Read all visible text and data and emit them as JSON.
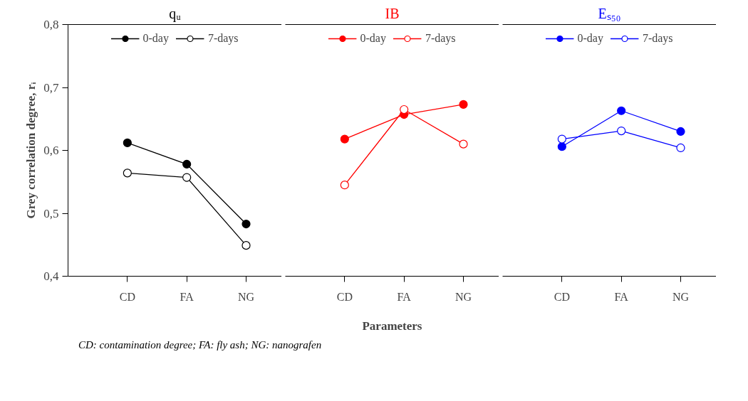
{
  "chart_data": [
    {
      "type": "line",
      "title": "qᵤ",
      "ylabel": "Grey correlation degree, rᵢ",
      "categories": [
        "CD",
        "FA",
        "NG"
      ],
      "marker": "circle",
      "legend": "top",
      "ylim": [
        0.4,
        0.8
      ],
      "yticks": [
        {
          "value": 0.4,
          "label": "0,4"
        },
        {
          "value": 0.5,
          "label": "0,5"
        },
        {
          "value": 0.6,
          "label": "0,6"
        },
        {
          "value": 0.7,
          "label": "0,7"
        },
        {
          "value": 0.8,
          "label": "0,8"
        }
      ],
      "annotations": [
        "CD: contamination degree; FA: fly ash; NG: nanografen"
      ],
      "series": [
        {
          "name": "0-day",
          "color": "#000000",
          "values": [
            0.612,
            0.578,
            0.483
          ]
        },
        {
          "name": "7-days",
          "color": "#000000",
          "values": [
            0.564,
            0.557,
            0.449
          ]
        }
      ]
    },
    {
      "type": "line",
      "title": "IB",
      "xlabel": "Parameters",
      "categories": [
        "CD",
        "FA",
        "NG"
      ],
      "marker": "circle",
      "legend": "top",
      "ylim": [
        0.4,
        0.8
      ],
      "tick_labels": "x",
      "series": [
        {
          "name": "0-day",
          "color": "#ff0000",
          "values": [
            0.618,
            0.657,
            0.673
          ]
        },
        {
          "name": "7-days",
          "color": "#ff0000",
          "values": [
            0.545,
            0.665,
            0.61
          ]
        }
      ]
    },
    {
      "type": "line",
      "title": "Eₛ₅₀",
      "categories": [
        "CD",
        "FA",
        "NG"
      ],
      "marker": "circle",
      "legend": "top",
      "ylim": [
        0.4,
        0.8
      ],
      "tick_labels": "x",
      "series": [
        {
          "name": "0-day",
          "color": "#0000ff",
          "values": [
            0.606,
            0.663,
            0.63
          ]
        },
        {
          "name": "7-days",
          "color": "#0000ff",
          "values": [
            0.618,
            0.631,
            0.604
          ]
        }
      ]
    }
  ]
}
